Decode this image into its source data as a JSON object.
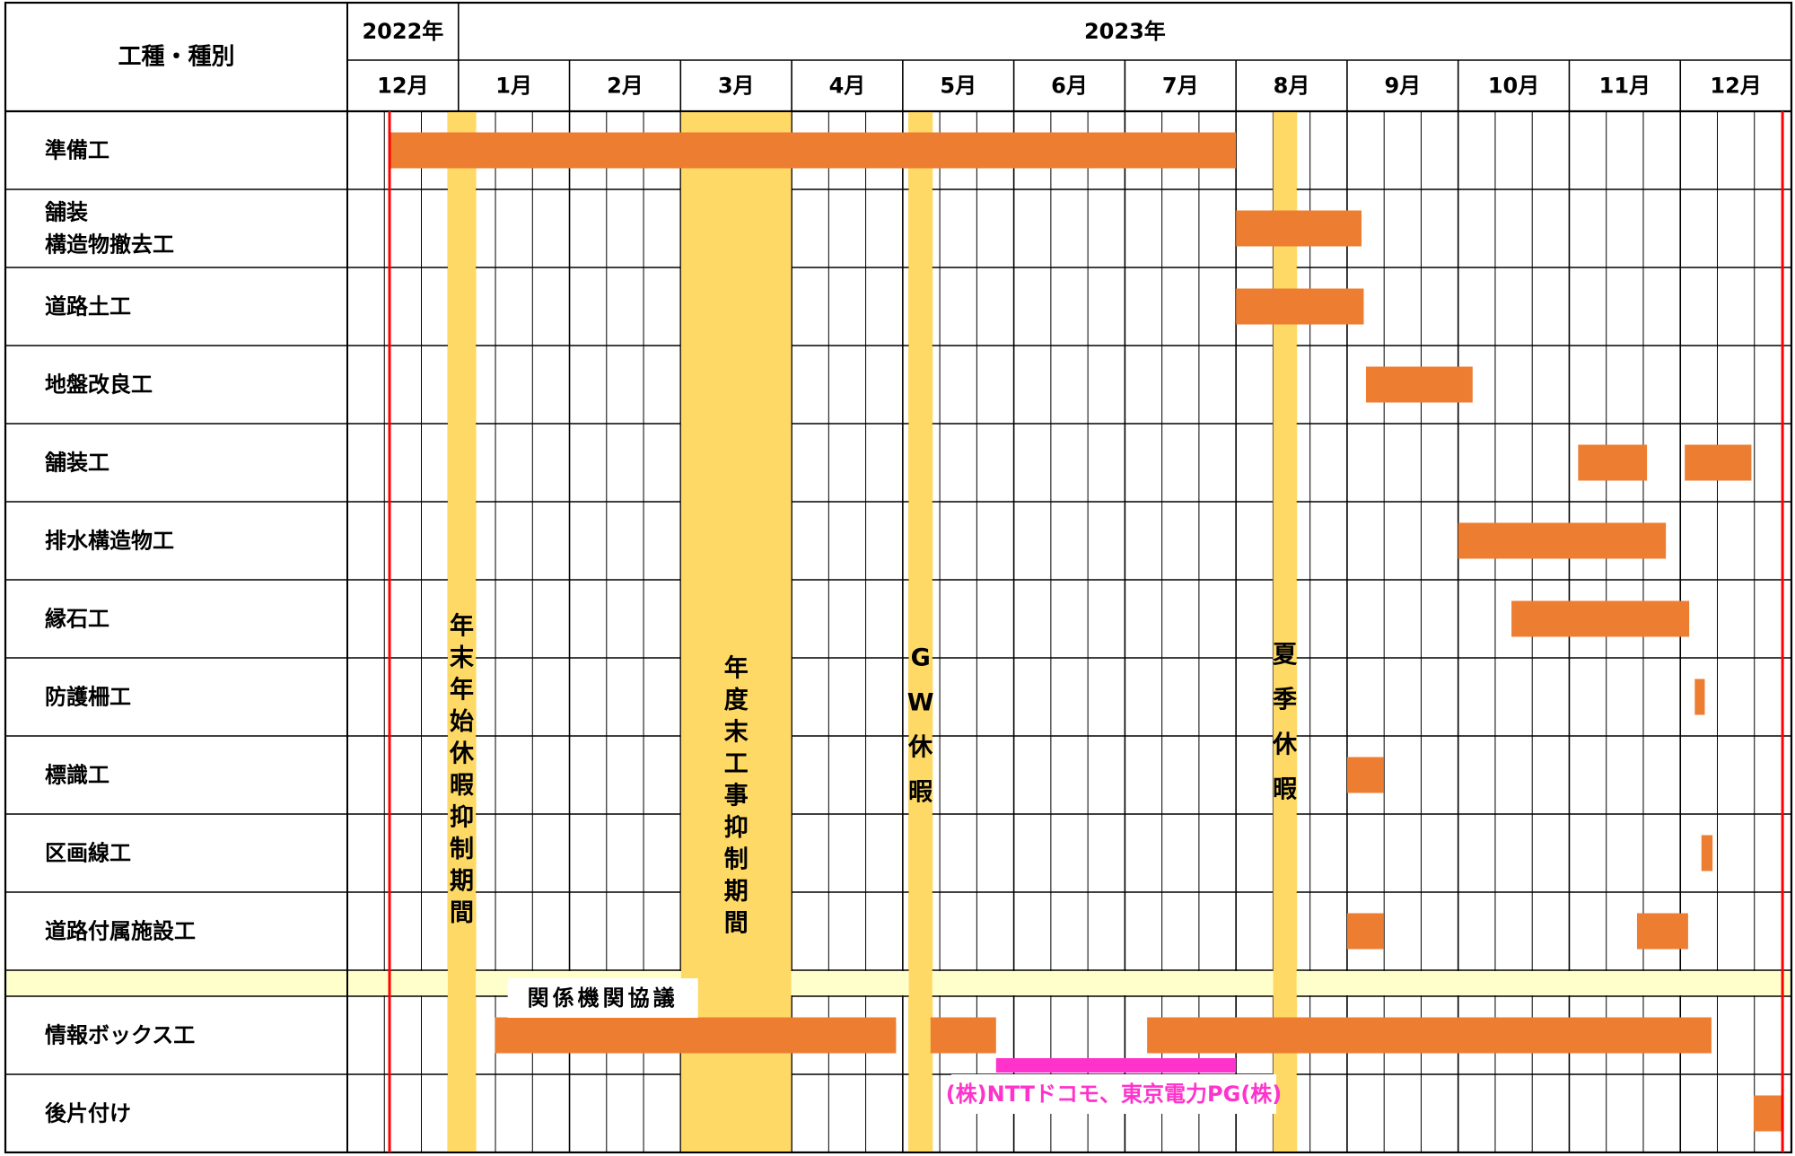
{
  "header": {
    "label_column": "工種・種別",
    "years": [
      {
        "label": "2022年",
        "months": 1
      },
      {
        "label": "2023年",
        "months": 12
      }
    ],
    "months": [
      "12月",
      "1月",
      "2月",
      "3月",
      "4月",
      "5月",
      "6月",
      "7月",
      "8月",
      "9月",
      "10月",
      "11月",
      "12月"
    ]
  },
  "rows": [
    {
      "label": "準備工"
    },
    {
      "label": "舗装",
      "label2": "構造物撤去工"
    },
    {
      "label": "道路土工"
    },
    {
      "label": "地盤改良工"
    },
    {
      "label": "舗装工"
    },
    {
      "label": "排水構造物工"
    },
    {
      "label": "縁石工"
    },
    {
      "label": "防護柵工"
    },
    {
      "label": "標識工"
    },
    {
      "label": "区画線工"
    },
    {
      "label": "道路付属施設工"
    },
    {
      "label": ""
    },
    {
      "label": "情報ボックス工"
    },
    {
      "label": "後片付け"
    }
  ],
  "chart_data": {
    "type": "gantt",
    "time_unit": "month",
    "first_month": "2022-12",
    "bars": [
      {
        "row": 0,
        "start": 0.38,
        "end": 8.0
      },
      {
        "row": 1,
        "start": 8.0,
        "end": 9.13
      },
      {
        "row": 2,
        "start": 8.0,
        "end": 9.15
      },
      {
        "row": 3,
        "start": 9.17,
        "end": 10.13
      },
      {
        "row": 4,
        "start": 11.08,
        "end": 11.7
      },
      {
        "row": 4,
        "start": 12.04,
        "end": 12.64
      },
      {
        "row": 5,
        "start": 10.0,
        "end": 11.87
      },
      {
        "row": 6,
        "start": 10.48,
        "end": 12.08
      },
      {
        "row": 7,
        "start": 12.13,
        "end": 12.22
      },
      {
        "row": 8,
        "start": 9.0,
        "end": 9.33
      },
      {
        "row": 9,
        "start": 12.19,
        "end": 12.29
      },
      {
        "row": 10,
        "start": 9.0,
        "end": 9.33
      },
      {
        "row": 10,
        "start": 11.61,
        "end": 12.07
      },
      {
        "row": 12,
        "start": 1.33,
        "end": 4.94
      },
      {
        "row": 12,
        "start": 5.25,
        "end": 5.84
      },
      {
        "row": 12,
        "start": 7.2,
        "end": 12.28
      },
      {
        "row": 13,
        "start": 12.66,
        "end": 12.92
      }
    ],
    "holiday_bands": [
      {
        "start": 0.9,
        "end": 1.16,
        "label": "年末年始休暇抑制期間"
      },
      {
        "start": 3.0,
        "end": 4.0,
        "label": "年度末工事抑制期間"
      },
      {
        "start": 5.05,
        "end": 5.27,
        "label": "GW休暇"
      },
      {
        "start": 8.33,
        "end": 8.55,
        "label": "夏季休暇"
      }
    ],
    "red_lines": [
      0.38,
      12.92
    ],
    "magenta_line": {
      "row": 12,
      "start": 5.84,
      "end": 8.0
    },
    "annotations": [
      {
        "text": "関係機関協議",
        "row": 11,
        "month_center": 2.3
      },
      {
        "text": "(株)NTTドコモ、東京電力PG(株)",
        "row": 13,
        "month_center": 6.9
      }
    ],
    "colors": {
      "bar": "#ED7D31",
      "holiday_band": "#FFD966",
      "separator_band": "#FFFFCC",
      "red_line": "#FF0000",
      "magenta_line": "#FF33CC",
      "grid": "#000000"
    }
  }
}
